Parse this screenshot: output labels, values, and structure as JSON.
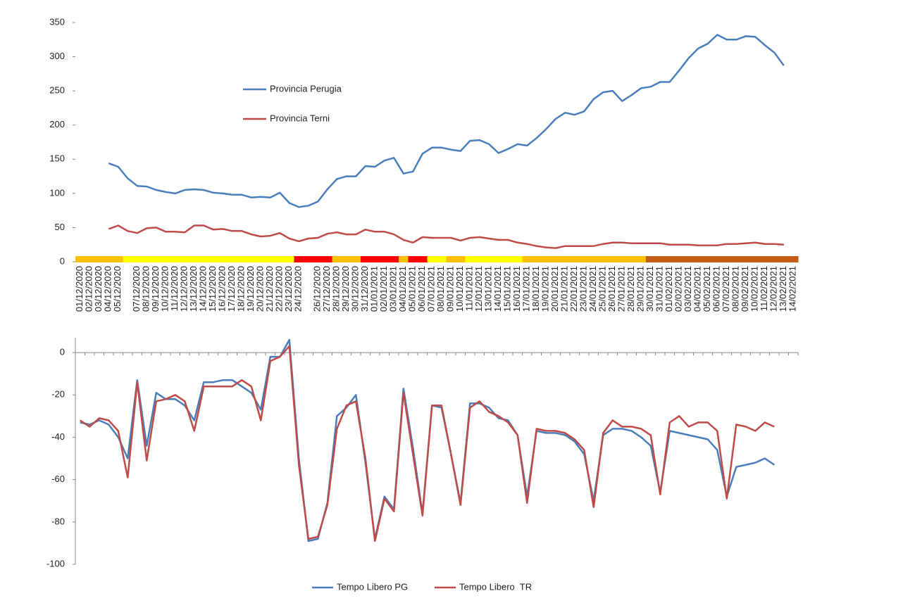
{
  "chart_data": [
    {
      "type": "line",
      "categories": [
        "01/12/2020",
        "02/12/2020",
        "03/12/2020",
        "04/12/2020",
        "05/12/2020",
        null,
        "07/12/2020",
        "08/12/2020",
        "09/12/2020",
        "10/12/2020",
        "11/12/2020",
        "12/12/2020",
        "13/12/2020",
        "14/12/2020",
        "15/12/2020",
        "16/12/2020",
        "17/12/2020",
        "18/12/2020",
        "19/12/2020",
        "20/12/2020",
        "21/12/2020",
        "22/12/2020",
        "23/12/2020",
        "24/12/2020",
        null,
        "26/12/2020",
        "27/12/2020",
        "28/12/2020",
        "29/12/2020",
        "30/12/2020",
        "31/12/2020",
        "01/01/2021",
        "02/01/2021",
        "03/01/2021",
        "04/01/2021",
        "05/01/2021",
        "06/01/2021",
        "07/01/2021",
        "08/01/2021",
        "09/01/2021",
        "10/01/2021",
        "11/01/2021",
        "12/01/2021",
        "13/01/2021",
        "14/01/2021",
        "15/01/2021",
        "16/01/2021",
        "17/01/2021",
        "18/01/2021",
        "19/01/2021",
        "20/01/2021",
        "21/01/2021",
        "22/01/2021",
        "23/01/2021",
        "24/01/2021",
        "25/01/2021",
        "26/01/2021",
        "27/01/2021",
        "28/01/2021",
        "29/01/2021",
        "30/01/2021",
        "31/01/2021",
        "01/02/2021",
        "02/02/2021",
        "03/02/2021",
        "04/02/2021",
        "05/02/2021",
        "06/02/2021",
        "07/02/2021",
        "08/02/2021",
        "09/02/2021",
        "10/02/2021",
        "11/02/2021",
        "12/02/2021",
        "13/02/2021",
        "14/02/2021"
      ],
      "series": [
        {
          "name": "Provincia Perugia",
          "color": "#4a7ebb",
          "values": [
            null,
            null,
            null,
            144,
            139,
            122,
            111,
            110,
            105,
            102,
            100,
            105,
            106,
            105,
            101,
            100,
            98,
            98,
            94,
            95,
            94,
            101,
            86,
            80,
            82,
            88,
            106,
            121,
            125,
            125,
            140,
            139,
            148,
            152,
            129,
            132,
            158,
            167,
            167,
            164,
            162,
            177,
            178,
            172,
            159,
            165,
            172,
            170,
            181,
            194,
            209,
            218,
            215,
            220,
            238,
            248,
            250,
            235,
            244,
            254,
            256,
            263,
            263,
            280,
            298,
            312,
            319,
            332,
            325,
            325,
            330,
            329,
            317,
            306,
            287,
            null
          ]
        },
        {
          "name": "Provincia Terni",
          "color": "#be4b48",
          "values": [
            null,
            null,
            null,
            48,
            53,
            45,
            42,
            49,
            50,
            44,
            44,
            43,
            53,
            53,
            47,
            48,
            45,
            45,
            40,
            37,
            38,
            42,
            34,
            30,
            34,
            35,
            41,
            43,
            40,
            40,
            47,
            44,
            44,
            40,
            32,
            28,
            36,
            35,
            35,
            35,
            31,
            35,
            36,
            34,
            32,
            32,
            28,
            26,
            23,
            21,
            20,
            23,
            23,
            23,
            23,
            26,
            28,
            28,
            27,
            27,
            27,
            27,
            25,
            25,
            25,
            24,
            24,
            24,
            26,
            26,
            27,
            28,
            26,
            26,
            25,
            null
          ]
        }
      ],
      "zone_colors": [
        "#ffc000",
        "#ffc000",
        "#ffc000",
        "#ffc000",
        "#ffc000",
        "#ffff00",
        "#ffff00",
        "#ffff00",
        "#ffff00",
        "#ffff00",
        "#ffff00",
        "#ffff00",
        "#ffff00",
        "#ffff00",
        "#ffff00",
        "#ffff00",
        "#ffff00",
        "#ffff00",
        "#ffff00",
        "#ffff00",
        "#ffff00",
        "#ffff00",
        "#ffff00",
        "#ff0000",
        "#ff0000",
        "#ff0000",
        "#ff0000",
        "#ffc000",
        "#ffc000",
        "#ffc000",
        "#ff0000",
        "#ff0000",
        "#ff0000",
        "#ff0000",
        "#ffc000",
        "#ff0000",
        "#ff0000",
        "#ffff00",
        "#ffff00",
        "#ffc000",
        "#ffc000",
        "#ffff00",
        "#ffff00",
        "#ffff00",
        "#ffff00",
        "#ffff00",
        "#ffff00",
        "#ffc000",
        "#ffc000",
        "#ffc000",
        "#ffc000",
        "#ffc000",
        "#ffc000",
        "#ffc000",
        "#ffc000",
        "#ffc000",
        "#ffc000",
        "#ffc000",
        "#ffc000",
        "#ffc000",
        "#c55a11",
        "#c55a11",
        "#c55a11",
        "#c55a11",
        "#c55a11",
        "#c55a11",
        "#c55a11",
        "#c55a11",
        "#c55a11",
        "#c55a11",
        "#c55a11",
        "#c55a11",
        "#c55a11",
        "#c55a11",
        "#c55a11",
        "#c55a11"
      ],
      "ylim": [
        0,
        350
      ],
      "yticks": [
        0,
        50,
        100,
        150,
        200,
        250,
        300,
        350
      ]
    },
    {
      "type": "line",
      "series": [
        {
          "name": "Tempo Libero PG",
          "color": "#4a7ebb",
          "values": [
            -33,
            -34,
            -32,
            -34,
            -40,
            -50,
            -13,
            -44,
            -19,
            -22,
            -22,
            -25,
            -32,
            -14,
            -14,
            -13,
            -13,
            -16,
            -19,
            -27,
            -2,
            -2,
            6,
            -50,
            -89,
            -88,
            -71,
            -30,
            -26,
            -20,
            -52,
            -88,
            -68,
            -74,
            -17,
            -45,
            -76,
            -25,
            -26,
            -48,
            -71,
            -24,
            -24,
            -26,
            -31,
            -32,
            -39,
            -68,
            -37,
            -38,
            -38,
            -39,
            -42,
            -48,
            -70,
            -39,
            -36,
            -36,
            -37,
            -40,
            -44,
            -66,
            -37,
            -38,
            -39,
            -40,
            -41,
            -46,
            -68,
            -54,
            -53,
            -52,
            -50,
            -53
          ]
        },
        {
          "name": "Tempo Libero  TR",
          "color": "#be4b48",
          "values": [
            -32,
            -35,
            -31,
            -32,
            -37,
            -59,
            -14,
            -51,
            -23,
            -22,
            -20,
            -23,
            -37,
            -16,
            -16,
            -16,
            -16,
            -13,
            -16,
            -32,
            -4,
            -2,
            3,
            -53,
            -88,
            -87,
            -72,
            -36,
            -25,
            -23,
            -50,
            -89,
            -69,
            -75,
            -19,
            -48,
            -77,
            -25,
            -25,
            -48,
            -72,
            -26,
            -23,
            -28,
            -30,
            -33,
            -39,
            -71,
            -36,
            -37,
            -37,
            -38,
            -41,
            -46,
            -73,
            -38,
            -32,
            -35,
            -35,
            -36,
            -39,
            -67,
            -33,
            -30,
            -35,
            -33,
            -33,
            -37,
            -69,
            -34,
            -35,
            -37,
            -33,
            -35
          ]
        }
      ],
      "ylim": [
        -100,
        7
      ],
      "yticks": [
        -100,
        -80,
        -60,
        -40,
        -20,
        0
      ]
    }
  ]
}
